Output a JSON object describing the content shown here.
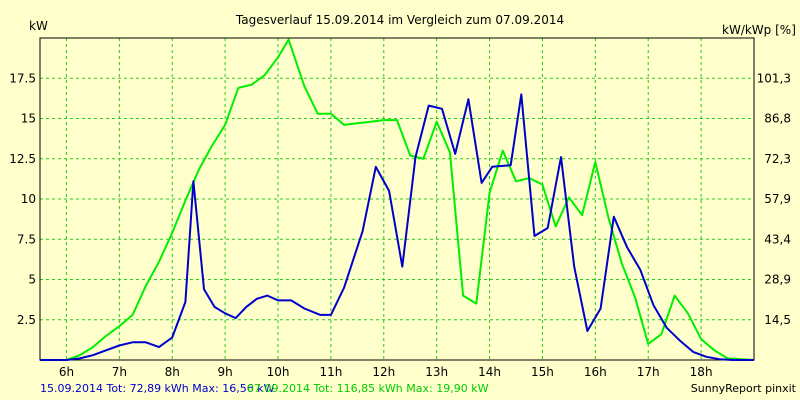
{
  "colors": {
    "background": "#ffffcc",
    "grid": "#22cc22",
    "series1": "#0000cc",
    "series2": "#00ee00"
  },
  "chart_data": {
    "type": "line",
    "title": "Tagesverlauf 15.09.2014 im Vergleich zum 07.09.2014",
    "ylabel_left": "kW",
    "ylabel_right": "kW/kWp [%]",
    "ylim": [
      0,
      20
    ],
    "xlim": [
      5.5,
      19.0
    ],
    "y_ticks": [
      2.5,
      5,
      7.5,
      10,
      12.5,
      15,
      17.5
    ],
    "y_tick_labels": [
      "2.5",
      "5",
      "7.5",
      "10",
      "12.5",
      "15",
      "17.5"
    ],
    "right_tick_labels": [
      "14,5",
      "28,9",
      "43,4",
      "57,9",
      "72,3",
      "86,8",
      "101,3"
    ],
    "x_ticks": [
      6,
      7,
      8,
      9,
      10,
      11,
      12,
      13,
      14,
      15,
      16,
      17,
      18
    ],
    "x_tick_labels": [
      "6h",
      "7h",
      "8h",
      "9h",
      "10h",
      "11h",
      "12h",
      "13h",
      "14h",
      "15h",
      "16h",
      "17h",
      "18h"
    ],
    "grid": true,
    "series": [
      {
        "name": "15.09.2014",
        "color": "#0000cc",
        "x": [
          5.5,
          6.0,
          6.25,
          6.5,
          6.75,
          7.0,
          7.25,
          7.5,
          7.75,
          8.0,
          8.25,
          8.4,
          8.6,
          8.8,
          9.0,
          9.2,
          9.4,
          9.6,
          9.8,
          10.0,
          10.25,
          10.5,
          10.8,
          11.0,
          11.25,
          11.6,
          11.85,
          12.1,
          12.35,
          12.6,
          12.85,
          13.1,
          13.35,
          13.6,
          13.85,
          14.05,
          14.4,
          14.6,
          14.85,
          15.1,
          15.35,
          15.6,
          15.85,
          16.1,
          16.35,
          16.6,
          16.85,
          17.1,
          17.35,
          17.6,
          17.85,
          18.1,
          18.35,
          18.6,
          19.0
        ],
        "y": [
          0,
          0,
          0.1,
          0.3,
          0.6,
          0.9,
          1.1,
          1.1,
          0.8,
          1.4,
          3.6,
          11.1,
          4.4,
          3.3,
          2.9,
          2.6,
          3.3,
          3.8,
          4.0,
          3.7,
          3.7,
          3.2,
          2.8,
          2.8,
          4.5,
          8.0,
          12.0,
          10.5,
          5.8,
          12.6,
          15.8,
          15.6,
          12.8,
          16.2,
          11.0,
          12.0,
          12.1,
          16.5,
          7.7,
          8.2,
          12.6,
          5.8,
          1.8,
          3.2,
          8.9,
          7.0,
          5.6,
          3.4,
          2.0,
          1.2,
          0.5,
          0.2,
          0.05,
          0,
          0
        ]
      },
      {
        "name": "07.09.2014",
        "color": "#00ee00",
        "x": [
          5.5,
          6.0,
          6.25,
          6.5,
          6.75,
          7.0,
          7.25,
          7.5,
          7.75,
          8.0,
          8.25,
          8.5,
          8.75,
          9.0,
          9.25,
          9.5,
          9.75,
          10.0,
          10.2,
          10.5,
          10.75,
          11.0,
          11.25,
          11.5,
          11.75,
          12.0,
          12.25,
          12.5,
          12.75,
          13.0,
          13.25,
          13.5,
          13.75,
          14.0,
          14.25,
          14.5,
          14.75,
          15.0,
          15.25,
          15.5,
          15.75,
          16.0,
          16.25,
          16.5,
          16.75,
          17.0,
          17.25,
          17.5,
          17.75,
          18.0,
          18.25,
          18.5,
          19.0
        ],
        "y": [
          0,
          0,
          0.3,
          0.8,
          1.5,
          2.1,
          2.8,
          4.6,
          6.1,
          7.9,
          9.9,
          11.8,
          13.3,
          14.6,
          16.9,
          17.1,
          17.7,
          18.8,
          19.9,
          17.0,
          15.3,
          15.3,
          14.6,
          14.7,
          14.8,
          14.9,
          14.9,
          12.7,
          12.5,
          14.8,
          12.9,
          4.0,
          3.5,
          10.4,
          13.0,
          11.1,
          11.3,
          10.9,
          8.3,
          10.1,
          9.0,
          12.3,
          8.8,
          6.0,
          3.9,
          1.0,
          1.6,
          4.0,
          2.9,
          1.3,
          0.6,
          0.1,
          0
        ]
      }
    ]
  },
  "legend": {
    "s1_prefix": "15.09.2014 Tot: 72,89 kWh Max: 16,56 kW",
    "s2_prefix": "07.09.2014 Tot: 116,85 kWh Max: 19,90 kW"
  },
  "credit": "SunnyReport pinxit"
}
